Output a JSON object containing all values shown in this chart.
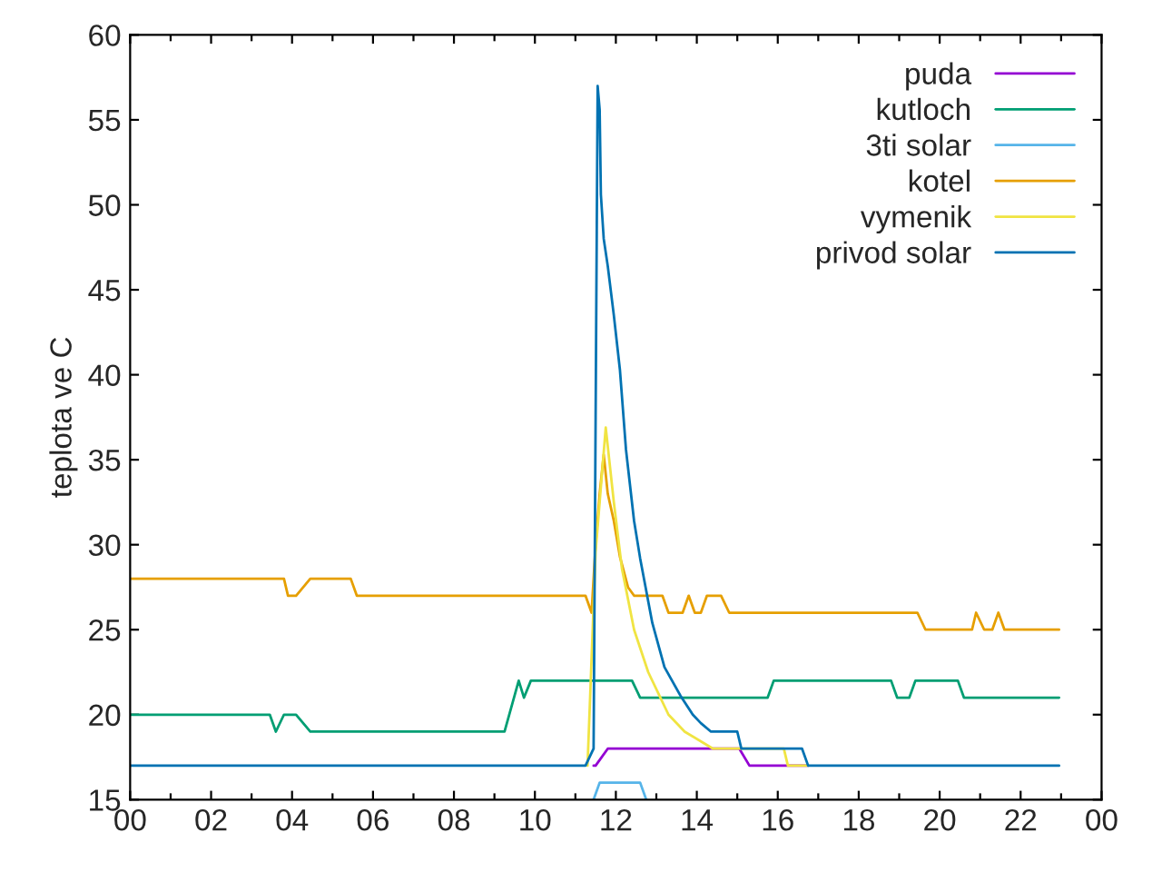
{
  "chart_data": {
    "type": "line",
    "ylabel": "teplota ve C",
    "xlim": [
      0,
      24
    ],
    "ylim": [
      15,
      60
    ],
    "xticks": [
      {
        "value": 0,
        "label": "00"
      },
      {
        "value": 1,
        "label": null
      },
      {
        "value": 2,
        "label": "02"
      },
      {
        "value": 3,
        "label": null
      },
      {
        "value": 4,
        "label": "04"
      },
      {
        "value": 5,
        "label": null
      },
      {
        "value": 6,
        "label": "06"
      },
      {
        "value": 7,
        "label": null
      },
      {
        "value": 8,
        "label": "08"
      },
      {
        "value": 9,
        "label": null
      },
      {
        "value": 10,
        "label": "10"
      },
      {
        "value": 11,
        "label": null
      },
      {
        "value": 12,
        "label": "12"
      },
      {
        "value": 13,
        "label": null
      },
      {
        "value": 14,
        "label": "14"
      },
      {
        "value": 15,
        "label": null
      },
      {
        "value": 16,
        "label": "16"
      },
      {
        "value": 17,
        "label": null
      },
      {
        "value": 18,
        "label": "18"
      },
      {
        "value": 19,
        "label": null
      },
      {
        "value": 20,
        "label": "20"
      },
      {
        "value": 21,
        "label": null
      },
      {
        "value": 22,
        "label": "22"
      },
      {
        "value": 23,
        "label": null
      },
      {
        "value": 24,
        "label": "00"
      }
    ],
    "yticks": [
      15,
      20,
      25,
      30,
      35,
      40,
      45,
      50,
      55,
      60
    ],
    "grid": false,
    "legend": "top right",
    "line_style": "solid",
    "marker": "none",
    "series": [
      {
        "name": "puda",
        "color": "#9400d3",
        "x": [
          11.45,
          11.5,
          11.8,
          15.05,
          15.3,
          16.75
        ],
        "values": [
          17,
          17,
          18,
          18,
          17,
          17
        ]
      },
      {
        "name": "kutloch",
        "color": "#009e73",
        "x": [
          0,
          3.45,
          3.6,
          3.8,
          4.1,
          4.45,
          9.25,
          9.6,
          9.73,
          9.9,
          12.4,
          12.6,
          15.75,
          15.9,
          18.8,
          18.95,
          19.25,
          19.4,
          20.45,
          20.6,
          22.95
        ],
        "values": [
          20,
          20,
          19,
          20,
          20,
          19,
          19,
          22,
          21,
          22,
          22,
          21,
          21,
          22,
          22,
          21,
          21,
          22,
          22,
          21,
          21
        ]
      },
      {
        "name": "3ti solar",
        "color": "#56b4e9",
        "x": [
          11.45,
          11.6,
          12.6,
          12.75
        ],
        "values": [
          15,
          16,
          16,
          15
        ]
      },
      {
        "name": "kotel",
        "color": "#e69f00",
        "x": [
          0,
          3.8,
          3.9,
          4.1,
          4.45,
          5.45,
          5.6,
          11.25,
          11.4,
          11.5,
          11.6,
          11.7,
          11.8,
          11.95,
          12.1,
          12.3,
          12.45,
          13.15,
          13.3,
          13.65,
          13.8,
          13.95,
          14.1,
          14.25,
          14.6,
          14.8,
          19.45,
          19.65,
          20.8,
          20.9,
          21.1,
          21.3,
          21.45,
          21.6,
          22.95
        ],
        "values": [
          28,
          28,
          27,
          27,
          28,
          28,
          27,
          27,
          26,
          30,
          33,
          35.3,
          33,
          31.4,
          29.3,
          27.5,
          27,
          27,
          26,
          26,
          27,
          26,
          26,
          27,
          27,
          26,
          26,
          25,
          25,
          26,
          25,
          25,
          26,
          25,
          25
        ]
      },
      {
        "name": "vymenik",
        "color": "#f0e442",
        "x": [
          11.3,
          11.5,
          11.75,
          11.95,
          12.15,
          12.45,
          12.8,
          13.3,
          13.7,
          14.4,
          16.15,
          16.25,
          16.75
        ],
        "values": [
          17,
          29.6,
          36.9,
          32.5,
          28.6,
          25,
          22.5,
          20,
          19,
          18,
          18,
          17,
          17
        ]
      },
      {
        "name": "privod solar",
        "color": "#0072b2",
        "x": [
          0,
          11.25,
          11.45,
          11.5,
          11.55,
          11.6,
          11.63,
          11.7,
          11.8,
          11.95,
          12.1,
          12.25,
          12.45,
          12.6,
          12.9,
          13.2,
          13.6,
          13.9,
          14.1,
          14.35,
          15.0,
          15.1,
          16.6,
          16.75,
          22.95
        ],
        "values": [
          17,
          17,
          18,
          37.5,
          57,
          55.6,
          50.6,
          48,
          46.4,
          43.5,
          40.3,
          35.6,
          31.4,
          29.2,
          25.4,
          22.8,
          21.1,
          20,
          19.5,
          19,
          19,
          18,
          18,
          17,
          17
        ]
      }
    ]
  }
}
